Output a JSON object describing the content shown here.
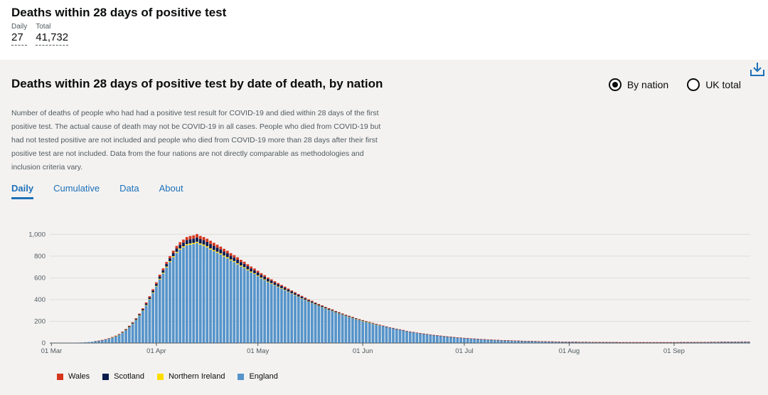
{
  "headline": {
    "title": "Deaths within 28 days of positive test",
    "daily_label": "Daily",
    "daily_value": "27",
    "total_label": "Total",
    "total_value": "41,732"
  },
  "card": {
    "title": "Deaths within 28 days of positive test by date of death, by nation",
    "description": "Number of deaths of people who had had a positive test result for COVID-19 and died within 28 days of the first positive test. The actual cause of death may not be COVID-19 in all cases. People who died from COVID-19 but had not tested positive are not included and people who died from COVID-19 more than 28 days after their first positive test are not included. Data from the four nations are not directly comparable as methodologies and inclusion criteria vary.",
    "download_icon": "download-icon",
    "radios": [
      {
        "label": "By nation",
        "selected": true
      },
      {
        "label": "UK total",
        "selected": false
      }
    ],
    "tabs": [
      {
        "label": "Daily",
        "active": true
      },
      {
        "label": "Cumulative",
        "active": false
      },
      {
        "label": "Data",
        "active": false
      },
      {
        "label": "About",
        "active": false
      }
    ]
  },
  "chart_data": {
    "type": "bar",
    "stacked": true,
    "start_date": "2020-03-01",
    "x_tick_labels": [
      "01 Mar",
      "01 Apr",
      "01 May",
      "01 Jun",
      "01 Jul",
      "01 Aug",
      "01 Sep"
    ],
    "y_tick_labels": [
      "0",
      "200",
      "400",
      "600",
      "800",
      "1,000"
    ],
    "y_ticks": [
      0,
      200,
      400,
      600,
      800,
      1000
    ],
    "ylim": [
      0,
      1100
    ],
    "grid": true,
    "legend_position": "bottom-left",
    "series": [
      {
        "name": "Wales",
        "color": "#d4351c",
        "values": [
          0,
          0,
          0,
          0,
          0,
          0,
          0,
          0,
          0,
          0,
          0,
          0,
          0,
          0,
          1,
          1,
          1,
          1,
          2,
          2,
          3,
          3,
          4,
          5,
          5,
          6,
          7,
          8,
          10,
          11,
          12,
          14,
          16,
          17,
          18,
          20,
          22,
          24,
          25,
          27,
          28,
          30,
          30,
          32,
          30,
          29,
          30,
          30,
          28,
          27,
          25,
          26,
          24,
          24,
          22,
          23,
          21,
          20,
          18,
          18,
          17,
          17,
          16,
          15,
          13,
          13,
          13,
          12,
          11,
          11,
          10,
          9,
          9,
          9,
          8,
          8,
          8,
          7,
          6,
          6,
          6,
          5,
          6,
          6,
          4,
          5,
          5,
          4,
          5,
          5,
          3,
          4,
          4,
          3,
          3,
          4,
          3,
          3,
          3,
          3,
          2,
          2,
          2,
          2,
          2,
          1,
          1,
          2,
          1,
          1,
          1,
          1,
          1,
          1,
          1,
          1,
          1,
          1,
          1,
          1,
          1,
          1,
          1,
          1,
          1,
          1,
          1,
          1,
          1,
          1,
          1,
          1,
          1,
          1,
          1,
          1,
          1,
          1,
          1,
          1,
          1,
          1,
          1,
          1,
          1,
          1,
          1,
          1,
          1,
          1,
          1,
          1,
          1,
          1,
          1,
          1,
          1,
          1,
          1,
          1,
          1,
          1,
          1,
          1,
          1,
          1,
          1,
          1,
          1,
          1,
          1,
          1,
          1,
          1,
          1,
          1,
          1,
          1,
          1,
          1,
          1,
          1,
          1,
          1,
          1,
          1,
          1,
          1,
          1,
          1,
          1,
          1,
          1,
          1,
          1,
          1,
          1,
          1,
          1,
          1,
          1,
          1,
          1,
          1,
          1,
          1,
          1
        ]
      },
      {
        "name": "Scotland",
        "color": "#0b1b4d",
        "values": [
          0,
          0,
          0,
          0,
          0,
          0,
          0,
          0,
          0,
          0,
          0,
          0,
          0,
          1,
          1,
          1,
          2,
          2,
          3,
          3,
          4,
          5,
          6,
          7,
          8,
          9,
          10,
          12,
          14,
          15,
          17,
          19,
          21,
          23,
          25,
          27,
          29,
          31,
          33,
          35,
          37,
          39,
          40,
          40,
          40,
          40,
          39,
          40,
          39,
          38,
          37,
          36,
          35,
          34,
          33,
          32,
          31,
          30,
          29,
          28,
          27,
          26,
          25,
          24,
          23,
          22,
          21,
          20,
          19,
          18,
          17,
          16,
          15,
          14,
          13,
          12,
          11,
          11,
          10,
          9,
          9,
          8,
          8,
          7,
          7,
          6,
          6,
          6,
          5,
          5,
          5,
          4,
          4,
          4,
          4,
          3,
          3,
          3,
          3,
          2,
          2,
          2,
          2,
          2,
          2,
          1,
          1,
          1,
          1,
          1,
          1,
          1,
          1,
          1,
          1,
          1,
          1,
          1,
          1,
          1,
          1,
          1,
          1,
          1,
          1,
          1,
          1,
          1,
          1,
          1,
          1,
          1,
          1,
          1,
          1,
          1,
          1,
          1,
          1,
          1,
          1,
          1,
          1,
          1,
          1,
          1,
          1,
          1,
          1,
          1,
          1,
          1,
          1,
          1,
          1,
          1,
          1,
          1,
          1,
          1,
          1,
          1,
          1,
          1,
          1,
          1,
          1,
          1,
          1,
          1,
          1,
          1,
          1,
          1,
          1,
          1,
          1,
          1,
          1,
          1,
          1,
          1,
          1,
          1,
          1,
          1,
          1,
          1,
          1,
          1,
          1,
          1,
          1,
          1,
          1,
          1,
          1,
          1,
          1,
          1,
          1,
          1,
          1,
          1,
          1,
          1,
          1
        ]
      },
      {
        "name": "Northern Ireland",
        "color": "#ffdd00",
        "values": [
          0,
          0,
          0,
          0,
          0,
          0,
          0,
          0,
          0,
          0,
          0,
          0,
          0,
          0,
          0,
          0,
          0,
          1,
          1,
          1,
          1,
          2,
          2,
          2,
          3,
          3,
          4,
          4,
          5,
          5,
          6,
          6,
          7,
          7,
          8,
          8,
          9,
          9,
          10,
          10,
          10,
          11,
          11,
          11,
          11,
          11,
          11,
          11,
          10,
          10,
          10,
          10,
          10,
          9,
          9,
          9,
          9,
          8,
          8,
          8,
          7,
          7,
          7,
          6,
          6,
          6,
          5,
          5,
          5,
          5,
          4,
          4,
          4,
          3,
          3,
          3,
          3,
          3,
          2,
          2,
          2,
          2,
          2,
          2,
          1,
          1,
          1,
          1,
          1,
          1,
          1,
          1,
          1,
          1,
          1,
          1,
          1,
          1,
          0,
          0,
          0,
          0,
          0,
          0,
          0,
          0,
          0,
          0,
          0,
          0,
          0,
          0,
          0,
          0,
          0,
          0,
          0,
          0,
          0,
          0,
          0,
          0,
          0,
          0,
          0,
          0,
          0,
          0,
          0,
          0,
          0,
          0,
          0,
          0,
          0,
          0,
          0,
          0,
          0,
          0,
          0,
          0,
          0,
          0,
          0,
          0,
          0,
          0,
          0,
          0,
          0,
          0,
          0,
          0,
          0,
          0,
          0,
          0,
          0,
          0,
          0,
          0,
          0,
          0,
          0,
          0,
          0,
          0,
          0,
          0,
          0,
          0,
          0,
          0,
          0,
          0,
          0,
          0,
          0,
          0,
          0,
          0,
          0,
          0,
          0,
          0,
          0,
          0,
          0,
          0,
          0,
          0,
          0,
          0,
          0,
          0,
          0,
          0,
          0,
          0,
          0,
          0,
          0,
          0,
          0,
          0
        ]
      },
      {
        "name": "England",
        "color": "#5694ca",
        "values": [
          0,
          0,
          1,
          1,
          1,
          2,
          3,
          3,
          4,
          5,
          7,
          9,
          12,
          16,
          20,
          26,
          32,
          40,
          50,
          62,
          76,
          95,
          118,
          145,
          175,
          210,
          250,
          295,
          345,
          400,
          460,
          520,
          585,
          640,
          695,
          745,
          790,
          830,
          860,
          880,
          900,
          905,
          910,
          920,
          905,
          895,
          880,
          860,
          845,
          830,
          815,
          795,
          780,
          760,
          745,
          725,
          705,
          690,
          670,
          650,
          635,
          615,
          595,
          580,
          560,
          545,
          530,
          515,
          500,
          485,
          470,
          455,
          440,
          425,
          410,
          395,
          380,
          368,
          355,
          342,
          330,
          318,
          305,
          295,
          283,
          272,
          260,
          250,
          240,
          230,
          220,
          211,
          202,
          194,
          186,
          178,
          170,
          162,
          155,
          148,
          141,
          135,
          128,
          122,
          116,
          110,
          104,
          99,
          94,
          89,
          85,
          81,
          77,
          73,
          69,
          66,
          62,
          59,
          56,
          53,
          50,
          48,
          45,
          43,
          41,
          39,
          37,
          35,
          33,
          31,
          30,
          28,
          27,
          25,
          24,
          23,
          22,
          21,
          20,
          19,
          18,
          17,
          17,
          16,
          15,
          15,
          14,
          13,
          13,
          12,
          12,
          11,
          11,
          10,
          10,
          10,
          9,
          9,
          9,
          8,
          8,
          8,
          8,
          7,
          7,
          7,
          7,
          7,
          6,
          6,
          6,
          6,
          6,
          6,
          6,
          6,
          6,
          6,
          6,
          6,
          6,
          6,
          6,
          6,
          6,
          6,
          7,
          7,
          7,
          7,
          7,
          8,
          8,
          8,
          8,
          9,
          9,
          9,
          10,
          10,
          10,
          11,
          11,
          11,
          12,
          12,
          12,
          13,
          13,
          13,
          13
        ]
      }
    ]
  }
}
